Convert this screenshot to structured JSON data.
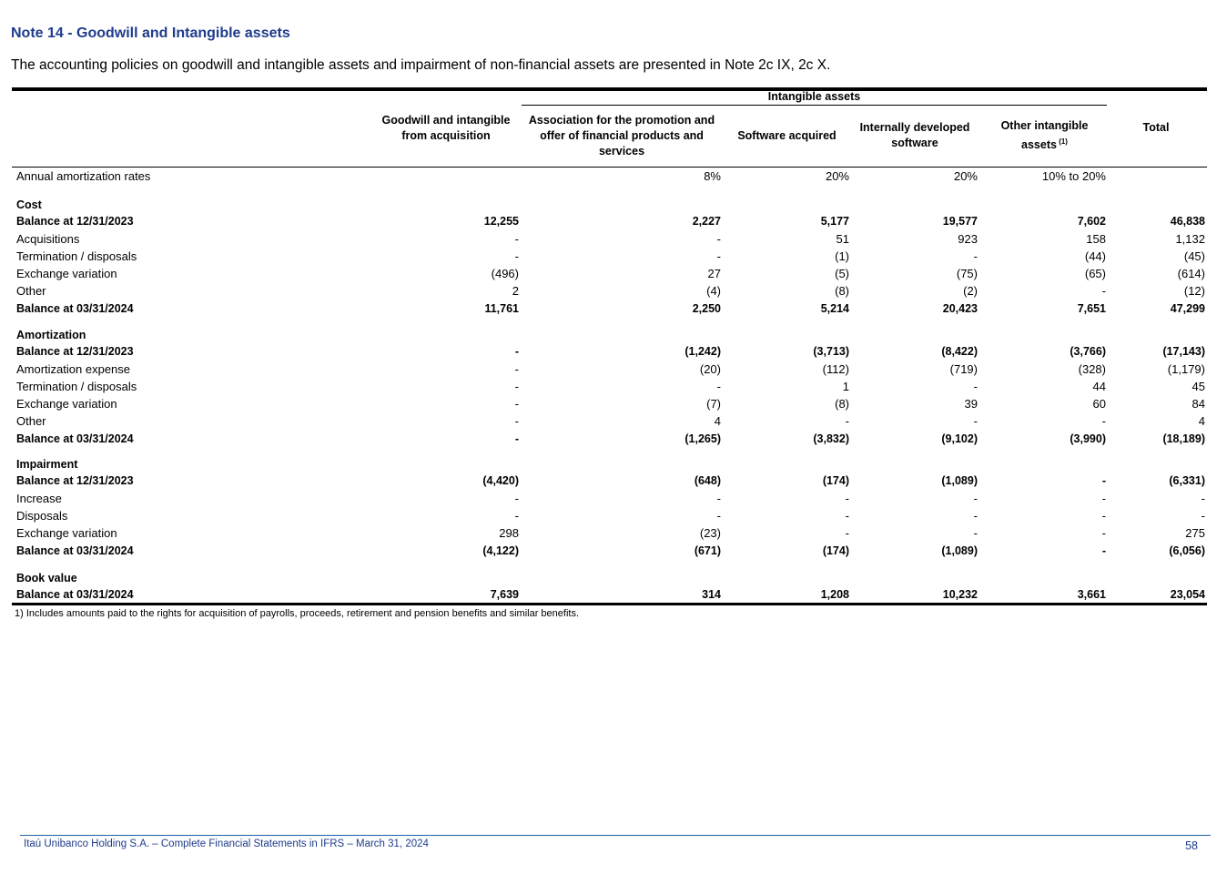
{
  "title": "Note 14 - Goodwill and Intangible assets",
  "intro": "The accounting policies on goodwill and intangible assets and impairment of non-financial assets are presented in Note 2c IX, 2c X.",
  "group_header": "Intangible assets",
  "columns": [
    "Goodwill and intangible from acquisition",
    "Association for the promotion and offer of financial products and services",
    "Software acquired",
    "Internally developed software",
    "Other intangible assets",
    "Total"
  ],
  "footnote_marker": "(1)",
  "rates": {
    "label": "Annual amortization rates",
    "values": [
      "",
      "8%",
      "20%",
      "20%",
      "10% to 20%",
      ""
    ]
  },
  "sections": [
    {
      "title": "Cost",
      "rows": [
        {
          "label": "Balance at  12/31/2023",
          "bold": true,
          "values": [
            "12,255",
            "2,227",
            "5,177",
            "19,577",
            "7,602",
            "46,838"
          ]
        },
        {
          "label": "Acquisitions",
          "values": [
            "-",
            "-",
            "51",
            "923",
            "158",
            "1,132"
          ]
        },
        {
          "label": "Termination / disposals",
          "values": [
            "-",
            "-",
            "(1)",
            "-",
            "(44)",
            "(45)"
          ]
        },
        {
          "label": "Exchange variation",
          "values": [
            "(496)",
            "27",
            "(5)",
            "(75)",
            "(65)",
            "(614)"
          ]
        },
        {
          "label": "Other",
          "values": [
            "2",
            "(4)",
            "(8)",
            "(2)",
            "-",
            "(12)"
          ]
        },
        {
          "label": "Balance at  03/31/2024",
          "bold": true,
          "values": [
            "11,761",
            "2,250",
            "5,214",
            "20,423",
            "7,651",
            "47,299"
          ]
        }
      ]
    },
    {
      "title": "Amortization",
      "rows": [
        {
          "label": "Balance at  12/31/2023",
          "bold": true,
          "values": [
            "-",
            "(1,242)",
            "(3,713)",
            "(8,422)",
            "(3,766)",
            "(17,143)"
          ]
        },
        {
          "label": "Amortization expense",
          "values": [
            "-",
            "(20)",
            "(112)",
            "(719)",
            "(328)",
            "(1,179)"
          ]
        },
        {
          "label": "Termination / disposals",
          "values": [
            "-",
            "-",
            "1",
            "-",
            "44",
            "45"
          ]
        },
        {
          "label": "Exchange variation",
          "values": [
            "-",
            "(7)",
            "(8)",
            "39",
            "60",
            "84"
          ]
        },
        {
          "label": "Other",
          "values": [
            "-",
            "4",
            "-",
            "-",
            "-",
            "4"
          ]
        },
        {
          "label": "Balance at  03/31/2024",
          "bold": true,
          "values": [
            "-",
            "(1,265)",
            "(3,832)",
            "(9,102)",
            "(3,990)",
            "(18,189)"
          ]
        }
      ]
    },
    {
      "title": "Impairment",
      "rows": [
        {
          "label": "Balance at  12/31/2023",
          "bold": true,
          "values": [
            "(4,420)",
            "(648)",
            "(174)",
            "(1,089)",
            "-",
            "(6,331)"
          ]
        },
        {
          "label": "Increase",
          "values": [
            "-",
            "-",
            "-",
            "-",
            "-",
            "-"
          ]
        },
        {
          "label": "Disposals",
          "values": [
            "-",
            "-",
            "-",
            "-",
            "-",
            "-"
          ]
        },
        {
          "label": "Exchange variation",
          "values": [
            "298",
            "(23)",
            "-",
            "-",
            "-",
            "275"
          ]
        },
        {
          "label": "Balance at  03/31/2024",
          "bold": true,
          "values": [
            "(4,122)",
            "(671)",
            "(174)",
            "(1,089)",
            "-",
            "(6,056)"
          ]
        }
      ]
    },
    {
      "title": "Book value",
      "rows": [
        {
          "label": "Balance at  03/31/2024",
          "bold": true,
          "values": [
            "7,639",
            "314",
            "1,208",
            "10,232",
            "3,661",
            "23,054"
          ]
        }
      ]
    }
  ],
  "footnote": "1) Includes amounts paid to the rights for acquisition of payrolls, proceeds, retirement and pension benefits and similar benefits.",
  "footer": {
    "left": "Itaú Unibanco Holding S.A. – Complete Financial Statements in IFRS – March 31, 2024",
    "page": "58"
  }
}
